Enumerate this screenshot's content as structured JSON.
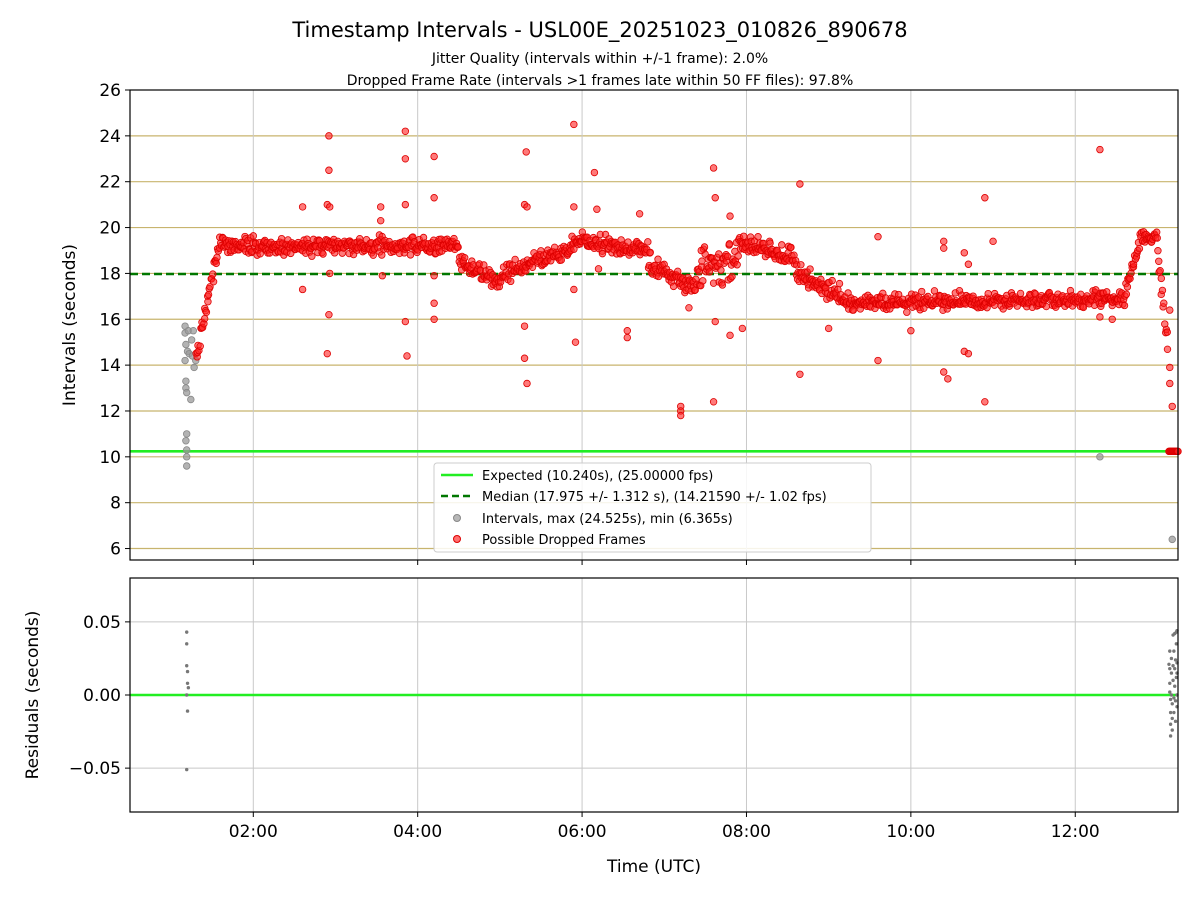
{
  "chart_data": [
    {
      "type": "scatter",
      "title": "Timestamp Intervals - USL00E_20251023_010826_890678",
      "subtitle_lines": [
        "Jitter Quality (intervals within +/-1 frame): 2.0%",
        "Dropped Frame Rate (intervals >1 frames late within 50 FF files): 97.8%"
      ],
      "xlabel": "",
      "ylabel": "Intervals (seconds)",
      "xlim_hours": [
        0.5,
        13.25
      ],
      "ylim": [
        5.5,
        26
      ],
      "yticks": [
        6,
        8,
        10,
        12,
        14,
        16,
        18,
        20,
        22,
        24,
        26
      ],
      "ytick_labels": [
        "6",
        "8",
        "10",
        "12",
        "14",
        "16",
        "18",
        "20",
        "22",
        "24",
        "26"
      ],
      "xticks_hours": [
        2,
        4,
        6,
        8,
        10,
        12
      ],
      "grid": true,
      "expected_interval": 10.24,
      "median_interval": 17.975,
      "legend_position": "lower-center",
      "legend": [
        {
          "label": "Expected (10.240s), (25.00000 fps)",
          "kind": "line",
          "color": "#22ee22"
        },
        {
          "label": "Median (17.975 +/- 1.312 s), (14.21590 +/- 1.02 fps)",
          "kind": "dashed",
          "color": "#007700"
        },
        {
          "label": "Intervals, max (24.525s), min (6.365s)",
          "kind": "marker",
          "color": "#999999"
        },
        {
          "label": "Possible Dropped Frames",
          "kind": "marker",
          "color": "#ff2222"
        }
      ],
      "series": [
        {
          "name": "Intervals",
          "color": "#999999",
          "points": [
            [
              1.17,
              15.7
            ],
            [
              1.17,
              15.4
            ],
            [
              1.18,
              14.9
            ],
            [
              1.17,
              14.2
            ],
            [
              1.18,
              13.3
            ],
            [
              1.18,
              13.0
            ],
            [
              1.19,
              12.8
            ],
            [
              1.19,
              11.0
            ],
            [
              1.18,
              10.7
            ],
            [
              1.19,
              10.3
            ],
            [
              1.19,
              10.0
            ],
            [
              1.19,
              9.6
            ],
            [
              1.2,
              14.6
            ],
            [
              1.21,
              15.5
            ],
            [
              1.22,
              14.5
            ],
            [
              1.24,
              12.5
            ],
            [
              1.25,
              15.1
            ],
            [
              1.26,
              14.4
            ],
            [
              1.27,
              15.5
            ],
            [
              1.28,
              13.9
            ],
            [
              1.3,
              14.2
            ],
            [
              12.3,
              10.0
            ],
            [
              13.18,
              6.4
            ]
          ]
        },
        {
          "name": "Possible Dropped Frames",
          "color": "#ff2222",
          "segments": [
            {
              "start": 1.3,
              "end": 1.6,
              "from": 14.2,
              "to": 19.6,
              "spread": 0.4
            },
            {
              "start": 1.6,
              "end": 4.5,
              "from": 19.2,
              "to": 19.2,
              "spread": 0.35
            },
            {
              "start": 4.5,
              "end": 5.0,
              "from": 18.5,
              "to": 17.6,
              "spread": 0.35
            },
            {
              "start": 5.0,
              "end": 6.0,
              "from": 17.9,
              "to": 19.4,
              "spread": 0.4
            },
            {
              "start": 6.0,
              "end": 6.8,
              "from": 19.4,
              "to": 18.9,
              "spread": 0.4
            },
            {
              "start": 6.8,
              "end": 7.4,
              "from": 18.5,
              "to": 17.3,
              "spread": 0.4
            },
            {
              "start": 7.4,
              "end": 7.9,
              "from": 18.2,
              "to": 18.5,
              "spread": 0.8
            },
            {
              "start": 7.9,
              "end": 8.6,
              "from": 19.3,
              "to": 18.7,
              "spread": 0.4
            },
            {
              "start": 8.6,
              "end": 9.2,
              "from": 18.0,
              "to": 16.9,
              "spread": 0.4
            },
            {
              "start": 9.2,
              "end": 12.6,
              "from": 16.7,
              "to": 16.9,
              "spread": 0.35
            },
            {
              "start": 12.6,
              "end": 12.8,
              "from": 17.0,
              "to": 19.6,
              "spread": 0.4
            },
            {
              "start": 12.8,
              "end": 13.0,
              "from": 19.6,
              "to": 19.5,
              "spread": 0.35
            },
            {
              "start": 13.0,
              "end": 13.13,
              "from": 19.0,
              "to": 14.6,
              "spread": 0.6
            }
          ],
          "outliers": [
            [
              2.6,
              20.9
            ],
            [
              2.6,
              17.3
            ],
            [
              2.92,
              24.0
            ],
            [
              2.92,
              22.5
            ],
            [
              2.9,
              21.0
            ],
            [
              2.93,
              20.9
            ],
            [
              2.92,
              16.2
            ],
            [
              2.9,
              14.5
            ],
            [
              2.93,
              18.0
            ],
            [
              3.55,
              20.3
            ],
            [
              3.55,
              20.9
            ],
            [
              3.57,
              17.9
            ],
            [
              3.85,
              24.2
            ],
            [
              3.85,
              23.0
            ],
            [
              3.85,
              21.0
            ],
            [
              3.85,
              15.9
            ],
            [
              3.87,
              14.4
            ],
            [
              4.2,
              23.1
            ],
            [
              4.2,
              21.3
            ],
            [
              4.2,
              16.7
            ],
            [
              4.2,
              16.0
            ],
            [
              4.2,
              17.9
            ],
            [
              5.3,
              21.0
            ],
            [
              5.32,
              23.3
            ],
            [
              5.3,
              15.7
            ],
            [
              5.3,
              14.3
            ],
            [
              5.33,
              13.2
            ],
            [
              5.33,
              20.9
            ],
            [
              5.9,
              24.5
            ],
            [
              5.9,
              20.9
            ],
            [
              5.9,
              17.3
            ],
            [
              5.92,
              15.0
            ],
            [
              6.15,
              22.4
            ],
            [
              6.18,
              20.8
            ],
            [
              6.2,
              18.2
            ],
            [
              6.55,
              15.5
            ],
            [
              6.55,
              15.2
            ],
            [
              6.7,
              20.6
            ],
            [
              7.2,
              12.2
            ],
            [
              7.2,
              12.0
            ],
            [
              7.2,
              11.8
            ],
            [
              7.3,
              16.5
            ],
            [
              7.45,
              19.0
            ],
            [
              7.6,
              22.6
            ],
            [
              7.62,
              21.3
            ],
            [
              7.62,
              15.9
            ],
            [
              7.6,
              12.4
            ],
            [
              7.8,
              20.5
            ],
            [
              7.8,
              15.3
            ],
            [
              7.95,
              15.6
            ],
            [
              8.65,
              21.9
            ],
            [
              8.65,
              13.6
            ],
            [
              9.0,
              15.6
            ],
            [
              9.3,
              16.4
            ],
            [
              9.6,
              14.2
            ],
            [
              9.6,
              19.6
            ],
            [
              10.0,
              15.5
            ],
            [
              10.4,
              19.4
            ],
            [
              10.4,
              19.1
            ],
            [
              10.4,
              13.7
            ],
            [
              10.45,
              13.4
            ],
            [
              10.65,
              18.9
            ],
            [
              10.65,
              14.6
            ],
            [
              10.7,
              14.5
            ],
            [
              10.7,
              18.4
            ],
            [
              10.9,
              21.3
            ],
            [
              10.9,
              12.4
            ],
            [
              11.0,
              19.4
            ],
            [
              12.3,
              23.4
            ],
            [
              12.3,
              16.1
            ],
            [
              12.45,
              16.0
            ],
            [
              13.15,
              13.2
            ],
            [
              13.18,
              12.2
            ],
            [
              13.15,
              16.4
            ],
            [
              13.15,
              13.9
            ]
          ],
          "tail_cluster": {
            "start": 13.14,
            "end": 13.25,
            "value": 10.24
          }
        }
      ]
    },
    {
      "type": "scatter",
      "title": "",
      "xlabel": "Time (UTC)",
      "ylabel": "Residuals (seconds)",
      "xlim_hours": [
        0.5,
        13.25
      ],
      "ylim": [
        -0.08,
        0.08
      ],
      "yticks": [
        -0.05,
        0.0,
        0.05
      ],
      "ytick_labels": [
        "−0.05",
        "0.00",
        "0.05"
      ],
      "xticks_hours": [
        2,
        4,
        6,
        8,
        10,
        12
      ],
      "xtick_labels": [
        "02:00",
        "04:00",
        "06:00",
        "08:00",
        "10:00",
        "12:00"
      ],
      "grid": true,
      "reference_line": 0.0,
      "reference_color": "#22ee22",
      "series": [
        {
          "name": "Residuals",
          "color": "#777777",
          "points": [
            [
              1.19,
              0.043
            ],
            [
              1.19,
              0.035
            ],
            [
              1.19,
              0.02
            ],
            [
              1.2,
              0.016
            ],
            [
              1.2,
              0.008
            ],
            [
              1.21,
              0.005
            ],
            [
              1.19,
              0.0
            ],
            [
              1.2,
              -0.011
            ],
            [
              1.19,
              -0.051
            ],
            [
              13.14,
              0.021
            ],
            [
              13.15,
              0.03
            ],
            [
              13.15,
              0.018
            ],
            [
              13.15,
              0.008
            ],
            [
              13.15,
              0.002
            ],
            [
              13.16,
              -0.003
            ],
            [
              13.16,
              -0.012
            ],
            [
              13.16,
              -0.02
            ],
            [
              13.16,
              -0.028
            ],
            [
              13.17,
              0.025
            ],
            [
              13.17,
              0.015
            ],
            [
              13.17,
              0.0
            ],
            [
              13.18,
              -0.006
            ],
            [
              13.18,
              -0.016
            ],
            [
              13.18,
              -0.024
            ],
            [
              13.19,
              0.041
            ],
            [
              13.19,
              0.02
            ],
            [
              13.19,
              0.01
            ],
            [
              13.2,
              -0.002
            ],
            [
              13.2,
              -0.012
            ],
            [
              13.2,
              0.03
            ],
            [
              13.21,
              0.042
            ],
            [
              13.21,
              0.018
            ],
            [
              13.21,
              0.006
            ],
            [
              13.22,
              -0.004
            ],
            [
              13.22,
              -0.018
            ],
            [
              13.22,
              0.024
            ],
            [
              13.23,
              0.043
            ],
            [
              13.23,
              0.035
            ],
            [
              13.23,
              0.012
            ],
            [
              13.24,
              -0.008
            ],
            [
              13.24,
              0.022
            ],
            [
              13.24,
              0.0
            ],
            [
              13.25,
              0.044
            ],
            [
              13.25,
              0.015
            ]
          ]
        }
      ]
    }
  ]
}
